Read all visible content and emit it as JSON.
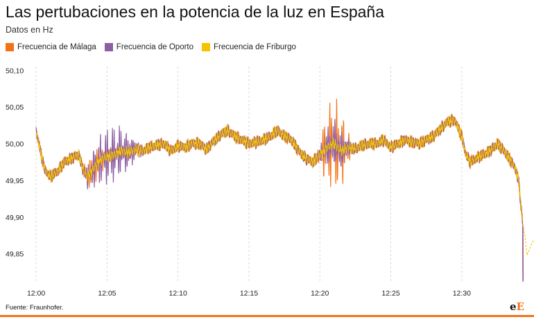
{
  "title": "Las pertubaciones en la potencia de la luz en España",
  "subtitle": "Datos en Hz",
  "source": "Fuente: Fraunhofer.",
  "logo": {
    "e1": "e",
    "e2": "E"
  },
  "chart_data": {
    "type": "line",
    "ylim": [
      49.81,
      50.105
    ],
    "y_ticks": [
      "50,10",
      "50,05",
      "50,00",
      "49,95",
      "49,90",
      "49,85"
    ],
    "y_tick_values": [
      50.1,
      50.05,
      50.0,
      49.95,
      49.9,
      49.85
    ],
    "x_ticks": [
      "12:00",
      "12:05",
      "12:10",
      "12:15",
      "12:20",
      "12:25",
      "12:30"
    ],
    "x_tick_minutes": [
      0,
      5,
      10,
      15,
      20,
      25,
      30
    ],
    "xlim_minutes": [
      -0.2,
      34.7
    ],
    "grid": "vertical",
    "legend": "top-left",
    "series": [
      {
        "name": "Frecuencia de Málaga",
        "color": "#f47216",
        "centerline": [
          [
            0,
            50.018
          ],
          [
            0.3,
            49.99
          ],
          [
            0.6,
            49.965
          ],
          [
            1,
            49.955
          ],
          [
            1.5,
            49.962
          ],
          [
            2,
            49.975
          ],
          [
            2.5,
            49.98
          ],
          [
            3,
            49.985
          ],
          [
            3.3,
            49.965
          ],
          [
            3.6,
            49.955
          ],
          [
            4,
            49.965
          ],
          [
            4.5,
            49.978
          ],
          [
            5,
            49.982
          ],
          [
            5.5,
            49.985
          ],
          [
            6,
            49.99
          ],
          [
            6.5,
            49.988
          ],
          [
            7,
            49.992
          ],
          [
            7.5,
            49.99
          ],
          [
            8,
            49.995
          ],
          [
            8.5,
            49.998
          ],
          [
            9,
            50.0
          ],
          [
            9.5,
            49.99
          ],
          [
            10,
            49.997
          ],
          [
            10.5,
            49.995
          ],
          [
            11,
            50.0
          ],
          [
            11.5,
            50.0
          ],
          [
            12,
            49.992
          ],
          [
            12.5,
            50.003
          ],
          [
            13,
            50.012
          ],
          [
            13.5,
            50.018
          ],
          [
            14,
            50.01
          ],
          [
            14.5,
            50.005
          ],
          [
            15,
            50.0
          ],
          [
            15.5,
            50.002
          ],
          [
            16,
            50.005
          ],
          [
            16.5,
            50.01
          ],
          [
            17,
            50.018
          ],
          [
            17.5,
            50.01
          ],
          [
            18,
            50.005
          ],
          [
            18.5,
            49.99
          ],
          [
            19,
            49.98
          ],
          [
            19.5,
            49.975
          ],
          [
            20,
            49.985
          ],
          [
            20.5,
            49.995
          ],
          [
            21,
            50.0
          ],
          [
            21.5,
            49.99
          ],
          [
            22,
            49.995
          ],
          [
            22.5,
            49.993
          ],
          [
            23,
            49.998
          ],
          [
            23.5,
            50.0
          ],
          [
            24,
            50.0
          ],
          [
            24.5,
            50.005
          ],
          [
            25,
            49.995
          ],
          [
            25.5,
            50.0
          ],
          [
            26,
            50.005
          ],
          [
            26.5,
            50.002
          ],
          [
            27,
            50.0
          ],
          [
            27.5,
            50.005
          ],
          [
            28,
            50.01
          ],
          [
            28.5,
            50.02
          ],
          [
            29,
            50.03
          ],
          [
            29.5,
            50.032
          ],
          [
            30,
            50.01
          ],
          [
            30.3,
            49.985
          ],
          [
            30.6,
            49.975
          ],
          [
            31,
            49.98
          ],
          [
            31.5,
            49.985
          ],
          [
            32,
            49.99
          ],
          [
            32.5,
            50.0
          ],
          [
            33,
            49.99
          ],
          [
            33.5,
            49.975
          ],
          [
            33.8,
            49.965
          ],
          [
            34,
            49.95
          ],
          [
            34.3,
            49.89
          ]
        ],
        "tail_end_minute": 34.3,
        "tail_end_value": 49.815,
        "oscillation_windows": [
          {
            "start": 3.1,
            "end": 5.0,
            "amplitude": 0.022
          },
          {
            "start": 19.8,
            "end": 22.3,
            "amplitude": 0.06
          }
        ]
      },
      {
        "name": "Frecuencia de Oporto",
        "color": "#8e5ea2",
        "centerline": [
          [
            0,
            50.018
          ],
          [
            0.3,
            49.99
          ],
          [
            0.6,
            49.965
          ],
          [
            1,
            49.955
          ],
          [
            1.5,
            49.962
          ],
          [
            2,
            49.975
          ],
          [
            2.5,
            49.98
          ],
          [
            3,
            49.985
          ],
          [
            3.3,
            49.965
          ],
          [
            3.6,
            49.955
          ],
          [
            4,
            49.965
          ],
          [
            4.5,
            49.978
          ],
          [
            5,
            49.982
          ],
          [
            5.5,
            49.985
          ],
          [
            6,
            49.99
          ],
          [
            6.5,
            49.988
          ],
          [
            7,
            49.992
          ],
          [
            7.5,
            49.99
          ],
          [
            8,
            49.995
          ],
          [
            8.5,
            49.998
          ],
          [
            9,
            50.0
          ],
          [
            9.5,
            49.99
          ],
          [
            10,
            49.997
          ],
          [
            10.5,
            49.995
          ],
          [
            11,
            50.0
          ],
          [
            11.5,
            50.0
          ],
          [
            12,
            49.992
          ],
          [
            12.5,
            50.003
          ],
          [
            13,
            50.012
          ],
          [
            13.5,
            50.018
          ],
          [
            14,
            50.01
          ],
          [
            14.5,
            50.005
          ],
          [
            15,
            50.0
          ],
          [
            15.5,
            50.002
          ],
          [
            16,
            50.005
          ],
          [
            16.5,
            50.01
          ],
          [
            17,
            50.018
          ],
          [
            17.5,
            50.01
          ],
          [
            18,
            50.005
          ],
          [
            18.5,
            49.99
          ],
          [
            19,
            49.98
          ],
          [
            19.5,
            49.975
          ],
          [
            20,
            49.985
          ],
          [
            20.5,
            49.995
          ],
          [
            21,
            50.0
          ],
          [
            21.5,
            49.99
          ],
          [
            22,
            49.995
          ],
          [
            22.5,
            49.993
          ],
          [
            23,
            49.998
          ],
          [
            23.5,
            50.0
          ],
          [
            24,
            50.0
          ],
          [
            24.5,
            50.005
          ],
          [
            25,
            49.995
          ],
          [
            25.5,
            50.0
          ],
          [
            26,
            50.005
          ],
          [
            26.5,
            50.002
          ],
          [
            27,
            50.0
          ],
          [
            27.5,
            50.005
          ],
          [
            28,
            50.01
          ],
          [
            28.5,
            50.02
          ],
          [
            29,
            50.03
          ],
          [
            29.5,
            50.032
          ],
          [
            30,
            50.01
          ],
          [
            30.3,
            49.985
          ],
          [
            30.6,
            49.975
          ],
          [
            31,
            49.98
          ],
          [
            31.5,
            49.985
          ],
          [
            32,
            49.99
          ],
          [
            32.5,
            50.0
          ],
          [
            33,
            49.99
          ],
          [
            33.5,
            49.975
          ],
          [
            33.8,
            49.965
          ],
          [
            34,
            49.95
          ],
          [
            34.3,
            49.89
          ]
        ],
        "tail_end_minute": 34.3,
        "tail_end_value": 49.812,
        "oscillation_windows": [
          {
            "start": 3.2,
            "end": 7.6,
            "amplitude": 0.04
          },
          {
            "start": 19.8,
            "end": 22.3,
            "amplitude": 0.035
          }
        ]
      },
      {
        "name": "Frecuencia de Friburgo",
        "color": "#f5c400",
        "centerline": [
          [
            0,
            50.018
          ],
          [
            0.3,
            49.99
          ],
          [
            0.6,
            49.965
          ],
          [
            1,
            49.955
          ],
          [
            1.5,
            49.962
          ],
          [
            2,
            49.975
          ],
          [
            2.5,
            49.98
          ],
          [
            3,
            49.985
          ],
          [
            3.3,
            49.965
          ],
          [
            3.6,
            49.955
          ],
          [
            4,
            49.965
          ],
          [
            4.5,
            49.978
          ],
          [
            5,
            49.982
          ],
          [
            5.5,
            49.985
          ],
          [
            6,
            49.99
          ],
          [
            6.5,
            49.988
          ],
          [
            7,
            49.992
          ],
          [
            7.5,
            49.99
          ],
          [
            8,
            49.995
          ],
          [
            8.5,
            49.998
          ],
          [
            9,
            50.0
          ],
          [
            9.5,
            49.99
          ],
          [
            10,
            49.997
          ],
          [
            10.5,
            49.995
          ],
          [
            11,
            50.0
          ],
          [
            11.5,
            50.0
          ],
          [
            12,
            49.992
          ],
          [
            12.5,
            50.003
          ],
          [
            13,
            50.012
          ],
          [
            13.5,
            50.018
          ],
          [
            14,
            50.01
          ],
          [
            14.5,
            50.005
          ],
          [
            15,
            50.0
          ],
          [
            15.5,
            50.002
          ],
          [
            16,
            50.005
          ],
          [
            16.5,
            50.01
          ],
          [
            17,
            50.018
          ],
          [
            17.5,
            50.01
          ],
          [
            18,
            50.005
          ],
          [
            18.5,
            49.99
          ],
          [
            19,
            49.98
          ],
          [
            19.5,
            49.975
          ],
          [
            20,
            49.985
          ],
          [
            20.5,
            49.995
          ],
          [
            21,
            50.0
          ],
          [
            21.5,
            49.99
          ],
          [
            22,
            49.995
          ],
          [
            22.5,
            49.993
          ],
          [
            23,
            49.998
          ],
          [
            23.5,
            50.0
          ],
          [
            24,
            50.0
          ],
          [
            24.5,
            50.005
          ],
          [
            25,
            49.995
          ],
          [
            25.5,
            50.0
          ],
          [
            26,
            50.005
          ],
          [
            26.5,
            50.002
          ],
          [
            27,
            50.0
          ],
          [
            27.5,
            50.005
          ],
          [
            28,
            50.01
          ],
          [
            28.5,
            50.02
          ],
          [
            29,
            50.03
          ],
          [
            29.5,
            50.032
          ],
          [
            30,
            50.01
          ],
          [
            30.3,
            49.985
          ],
          [
            30.6,
            49.975
          ],
          [
            31,
            49.98
          ],
          [
            31.5,
            49.985
          ],
          [
            32,
            49.99
          ],
          [
            32.5,
            50.0
          ],
          [
            33,
            49.99
          ],
          [
            33.5,
            49.975
          ],
          [
            33.8,
            49.965
          ],
          [
            34,
            49.95
          ],
          [
            34.3,
            49.89
          ]
        ],
        "tail": [
          [
            34.3,
            49.89
          ],
          [
            34.45,
            49.875
          ],
          [
            34.6,
            49.848
          ],
          [
            34.75,
            49.855
          ],
          [
            34.9,
            49.862
          ],
          [
            35.05,
            49.868
          ]
        ],
        "tail_dashed": true,
        "oscillation_windows": []
      }
    ]
  }
}
